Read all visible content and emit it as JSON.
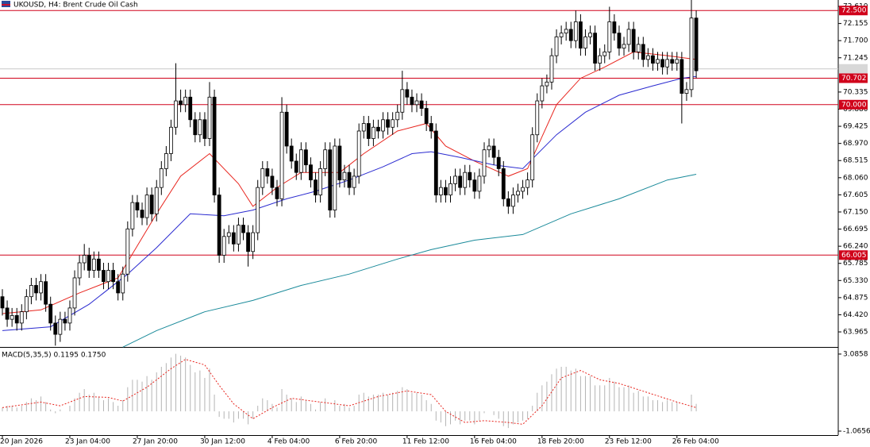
{
  "header": {
    "title": "UKOUSD, H4: Brent Crude Oil Cash"
  },
  "chart_data": [
    {
      "type": "candlestick",
      "open": [
        64.9,
        64.6,
        64.3,
        64.4,
        64.2,
        64.5,
        64.9,
        65.2,
        65.0,
        65.3,
        64.7,
        64.2,
        63.9,
        64.3,
        64.2,
        64.6,
        65.4,
        65.8,
        66.0,
        65.6,
        65.9,
        65.6,
        65.3,
        65.6,
        65.3,
        65.0,
        65.5,
        66.7,
        67.4,
        67.2,
        67.0,
        67.6,
        67.1,
        67.8,
        68.3,
        68.7,
        69.4,
        70.1,
        70.0,
        70.2,
        69.6,
        69.2,
        69.6,
        69.1,
        70.2,
        67.6,
        66.0,
        66.5,
        66.6,
        66.3,
        66.8,
        66.6,
        66.1,
        66.6,
        67.8,
        68.3,
        68.1,
        67.8,
        67.5,
        69.8,
        68.9,
        68.5,
        68.2,
        68.8,
        68.4,
        68.0,
        67.6,
        68.3,
        68.8,
        67.2,
        68.9,
        68.0,
        68.2,
        67.8,
        68.1,
        69.3,
        69.5,
        69.1,
        69.4,
        69.3,
        69.6,
        69.4,
        69.6,
        69.8,
        70.4,
        70.2,
        70.0,
        70.1,
        69.9,
        69.5,
        69.3,
        67.6,
        67.8,
        67.6,
        67.9,
        68.1,
        67.8,
        68.2,
        68.0,
        67.7,
        68.1,
        68.8,
        68.9,
        68.6,
        68.3,
        67.5,
        67.3,
        67.6,
        67.7,
        67.8,
        68.0,
        69.2,
        70.1,
        70.5,
        70.6,
        71.3,
        71.8,
        71.9,
        72.0,
        71.7,
        72.2,
        71.5,
        71.8,
        71.9,
        71.1,
        71.3,
        71.4,
        72.2,
        71.9,
        71.5,
        71.6,
        72.0,
        71.4,
        71.6,
        71.2,
        71.3,
        71.1,
        71.2,
        71.0,
        71.2,
        71.1,
        71.2,
        70.3,
        70.4,
        72.3
      ],
      "high": [
        65.1,
        64.8,
        64.6,
        64.6,
        64.7,
        65.1,
        65.4,
        65.4,
        65.5,
        65.5,
        64.9,
        64.4,
        64.5,
        64.5,
        64.8,
        65.6,
        66.0,
        66.3,
        66.2,
        66.1,
        66.1,
        65.8,
        65.8,
        65.8,
        65.5,
        65.7,
        66.9,
        67.6,
        67.6,
        67.4,
        67.8,
        67.8,
        68.0,
        68.5,
        68.9,
        69.6,
        71.1,
        70.4,
        70.4,
        70.4,
        69.8,
        69.8,
        69.8,
        70.6,
        70.4,
        67.8,
        66.7,
        66.8,
        66.8,
        67.0,
        67.0,
        66.8,
        66.8,
        68.0,
        68.5,
        68.5,
        68.3,
        68.0,
        70.2,
        70.0,
        69.1,
        68.7,
        69.0,
        69.0,
        68.6,
        68.2,
        68.5,
        69.0,
        69.0,
        69.1,
        69.1,
        68.4,
        68.4,
        68.3,
        69.5,
        69.7,
        69.7,
        69.6,
        69.6,
        69.8,
        69.8,
        69.8,
        70.0,
        70.9,
        70.6,
        70.4,
        70.3,
        70.3,
        70.1,
        69.7,
        69.5,
        68.0,
        68.0,
        68.1,
        68.3,
        68.3,
        68.4,
        68.4,
        68.2,
        68.3,
        69.0,
        69.1,
        69.1,
        68.8,
        68.5,
        67.7,
        67.8,
        67.9,
        68.0,
        68.2,
        69.4,
        70.3,
        70.7,
        70.8,
        71.5,
        72.0,
        72.1,
        72.2,
        72.2,
        72.5,
        72.4,
        72.0,
        72.1,
        72.1,
        71.5,
        71.6,
        72.6,
        72.4,
        72.1,
        71.8,
        72.2,
        72.2,
        71.8,
        71.8,
        71.5,
        71.5,
        71.4,
        71.4,
        71.4,
        71.4,
        71.4,
        71.4,
        70.6,
        72.8,
        72.5
      ],
      "low": [
        64.4,
        64.1,
        64.1,
        64.0,
        64.0,
        64.3,
        64.7,
        64.8,
        64.8,
        64.5,
        64.0,
        63.6,
        63.7,
        64.0,
        64.0,
        64.4,
        65.2,
        65.6,
        65.4,
        65.4,
        65.4,
        65.1,
        65.1,
        65.1,
        64.8,
        64.8,
        65.3,
        66.5,
        67.0,
        66.8,
        66.8,
        66.9,
        66.9,
        67.6,
        68.1,
        68.5,
        69.2,
        69.8,
        69.8,
        69.4,
        69.0,
        69.0,
        68.9,
        68.9,
        67.4,
        65.8,
        65.8,
        66.3,
        66.1,
        66.1,
        66.4,
        65.7,
        65.9,
        66.4,
        67.6,
        67.9,
        67.6,
        67.3,
        67.3,
        68.7,
        68.3,
        68.0,
        68.0,
        68.2,
        67.8,
        67.4,
        67.4,
        68.1,
        67.0,
        67.0,
        67.8,
        67.8,
        67.6,
        67.6,
        67.9,
        69.1,
        68.9,
        68.9,
        69.1,
        69.1,
        69.2,
        69.2,
        69.4,
        69.6,
        70.0,
        69.8,
        69.8,
        69.7,
        69.3,
        69.1,
        67.4,
        67.4,
        67.4,
        67.4,
        67.7,
        67.6,
        67.6,
        67.8,
        67.5,
        67.5,
        67.9,
        68.6,
        68.4,
        68.1,
        67.3,
        67.1,
        67.1,
        67.4,
        67.5,
        67.6,
        67.8,
        69.0,
        69.9,
        70.3,
        70.4,
        71.1,
        71.6,
        71.7,
        71.5,
        71.5,
        71.3,
        71.3,
        71.6,
        70.9,
        70.9,
        71.1,
        71.2,
        71.7,
        71.3,
        71.3,
        71.4,
        71.2,
        71.2,
        71.0,
        71.0,
        70.9,
        70.9,
        70.8,
        70.8,
        70.9,
        70.9,
        69.5,
        70.1,
        70.2,
        70.7
      ],
      "close": [
        64.6,
        64.3,
        64.4,
        64.2,
        64.5,
        64.9,
        65.2,
        65.0,
        65.3,
        64.7,
        64.2,
        63.9,
        64.3,
        64.2,
        64.6,
        65.4,
        65.8,
        66.0,
        65.6,
        65.9,
        65.6,
        65.3,
        65.6,
        65.3,
        65.0,
        65.5,
        66.7,
        67.4,
        67.2,
        67.0,
        67.6,
        67.1,
        67.8,
        68.3,
        68.7,
        69.4,
        70.1,
        70.0,
        70.2,
        69.6,
        69.2,
        69.6,
        69.1,
        70.2,
        67.6,
        66.0,
        66.5,
        66.6,
        66.3,
        66.8,
        66.6,
        66.1,
        66.6,
        67.8,
        68.3,
        68.1,
        67.8,
        67.5,
        69.8,
        68.9,
        68.5,
        68.2,
        68.8,
        68.4,
        68.0,
        67.6,
        68.3,
        68.8,
        67.2,
        68.9,
        68.0,
        68.2,
        67.8,
        68.1,
        69.3,
        69.5,
        69.1,
        69.4,
        69.3,
        69.6,
        69.4,
        69.6,
        69.8,
        70.4,
        70.2,
        70.0,
        70.1,
        69.9,
        69.5,
        69.3,
        67.6,
        67.8,
        67.6,
        67.9,
        68.1,
        67.8,
        68.2,
        68.0,
        67.7,
        68.1,
        68.8,
        68.9,
        68.6,
        68.3,
        67.5,
        67.3,
        67.6,
        67.7,
        67.8,
        68.0,
        69.2,
        70.1,
        70.5,
        70.6,
        71.3,
        71.8,
        71.9,
        72.0,
        71.7,
        72.2,
        71.5,
        71.8,
        71.9,
        71.1,
        71.3,
        71.4,
        72.2,
        71.9,
        71.5,
        71.6,
        72.0,
        71.4,
        71.6,
        71.2,
        71.3,
        71.1,
        71.2,
        71.0,
        71.2,
        71.1,
        71.2,
        70.3,
        70.4,
        72.3,
        70.9
      ],
      "up_color": "#ffffff",
      "down_color": "#000000",
      "lines": [
        {
          "color": "#e8251e",
          "x": [
            0,
            8,
            16,
            24,
            32,
            37,
            43,
            49,
            52,
            57,
            62,
            70,
            75,
            82,
            88,
            92,
            98,
            105,
            109,
            115,
            120,
            125,
            131,
            138,
            144
          ],
          "values": [
            64.45,
            64.55,
            65.0,
            65.4,
            67.1,
            68.1,
            68.7,
            67.9,
            67.3,
            67.8,
            68.2,
            68.2,
            68.7,
            69.3,
            69.5,
            68.9,
            68.5,
            68.1,
            68.3,
            70.0,
            70.7,
            71.0,
            71.4,
            71.3,
            71.2
          ]
        },
        {
          "color": "#2a2ad0",
          "x": [
            0,
            10,
            18,
            26,
            32,
            39,
            46,
            52,
            59,
            65,
            72,
            79,
            85,
            89,
            95,
            102,
            108,
            115,
            121,
            128,
            135,
            141,
            144
          ],
          "values": [
            64.0,
            64.1,
            64.7,
            65.5,
            66.2,
            67.1,
            67.05,
            67.2,
            67.5,
            67.7,
            68.0,
            68.35,
            68.7,
            68.75,
            68.6,
            68.4,
            68.3,
            69.2,
            69.8,
            70.25,
            70.5,
            70.7,
            70.75
          ]
        },
        {
          "color": "#1a8a9a",
          "x": [
            25,
            32,
            42,
            52,
            62,
            72,
            82,
            89,
            98,
            108,
            118,
            128,
            138,
            144
          ],
          "values": [
            63.56,
            64.0,
            64.5,
            64.8,
            65.2,
            65.5,
            65.9,
            66.15,
            66.4,
            66.55,
            67.1,
            67.5,
            68.0,
            68.15
          ]
        }
      ],
      "levels": [
        {
          "value": 72.5,
          "label": "72.500",
          "color": "#d0021b"
        },
        {
          "value": 70.702,
          "label": "70.702",
          "color": "#d0021b"
        },
        {
          "value": 70.0,
          "label": "70.000",
          "color": "#d0021b"
        },
        {
          "value": 66.005,
          "label": "66.005",
          "color": "#d0021b"
        }
      ],
      "bid": 70.95,
      "ylim": [
        63.565,
        72.779
      ],
      "yticks": [
        {
          "value": 72.61,
          "label": "72.610"
        },
        72.155,
        {
          "value": 71.7,
          "label": "71.700"
        },
        71.245,
        70.335,
        {
          "value": 69.88,
          "label": "69.880"
        },
        69.425,
        {
          "value": 68.97,
          "label": "68.970"
        },
        68.515,
        {
          "value": 68.06,
          "label": "68.060"
        },
        67.605,
        {
          "value": 67.15,
          "label": "67.150"
        },
        66.695,
        {
          "value": 66.24,
          "label": "66.240"
        },
        65.785,
        {
          "value": 65.33,
          "label": "65.330"
        },
        64.875,
        {
          "value": 64.42,
          "label": "64.420"
        },
        63.965
      ],
      "xticks": [
        {
          "value": 0,
          "label": "20 Jan 2026"
        },
        {
          "value": 14,
          "label": "23 Jan 04:00"
        },
        {
          "value": 28,
          "label": "27 Jan 20:00"
        },
        {
          "value": 42,
          "label": "30 Jan 12:00"
        },
        {
          "value": 56,
          "label": "4 Feb 04:00"
        },
        {
          "value": 70,
          "label": "6 Feb 20:00"
        },
        {
          "value": 84,
          "label": "11 Feb 12:00"
        },
        {
          "value": 98,
          "label": "16 Feb 04:00"
        },
        {
          "value": 112,
          "label": "18 Feb 20:00"
        },
        {
          "value": 126,
          "label": "23 Feb 12:00"
        },
        {
          "value": 140,
          "label": "26 Feb 04:00"
        }
      ]
    },
    {
      "type": "macd",
      "title": "MACD(5,35,5) 0.1195 0.1750",
      "histogram": [
        0.2,
        0.3,
        0.3,
        0.2,
        0.3,
        0.5,
        0.7,
        0.6,
        0.8,
        0.5,
        0.1,
        -0.1,
        0.1,
        0.0,
        0.3,
        0.7,
        1.0,
        1.2,
        0.9,
        1.0,
        0.8,
        0.6,
        0.7,
        0.5,
        0.3,
        0.6,
        1.3,
        1.7,
        1.7,
        1.6,
        1.9,
        1.7,
        2.1,
        2.4,
        2.6,
        2.9,
        3.1,
        3.0,
        2.9,
        2.5,
        2.1,
        2.2,
        1.8,
        2.3,
        0.9,
        -0.3,
        -0.4,
        -0.4,
        -0.6,
        -0.4,
        -0.4,
        -0.7,
        -0.4,
        0.3,
        0.7,
        0.6,
        0.4,
        0.2,
        1.2,
        0.9,
        0.7,
        0.5,
        0.8,
        0.6,
        0.4,
        0.1,
        0.5,
        0.7,
        0.0,
        0.6,
        0.3,
        0.4,
        0.2,
        0.3,
        0.9,
        1.0,
        0.8,
        0.9,
        0.9,
        1.0,
        0.9,
        1.0,
        1.1,
        1.3,
        1.2,
        1.0,
        1.0,
        0.9,
        0.6,
        0.4,
        -0.5,
        -0.6,
        -0.8,
        -0.7,
        -0.5,
        -0.7,
        -0.5,
        -0.5,
        -0.7,
        -0.5,
        -0.1,
        0.0,
        -0.2,
        -0.4,
        -0.8,
        -0.9,
        -0.7,
        -0.6,
        -0.5,
        -0.4,
        0.3,
        1.0,
        1.4,
        1.6,
        2.0,
        2.3,
        2.4,
        2.4,
        2.2,
        2.3,
        1.9,
        1.9,
        1.9,
        1.4,
        1.4,
        1.4,
        1.8,
        1.6,
        1.3,
        1.3,
        1.4,
        1.0,
        1.1,
        0.8,
        0.8,
        0.6,
        0.6,
        0.5,
        0.6,
        0.5,
        0.5,
        0.0,
        0.0,
        0.9,
        0.4
      ],
      "histogram_color": "#b4b4b4",
      "signal": {
        "color": "#e8251e",
        "x": [
          0,
          8,
          12,
          17,
          22,
          25,
          30,
          35,
          38,
          42,
          45,
          48,
          52,
          56,
          60,
          66,
          72,
          78,
          84,
          89,
          92,
          96,
          100,
          105,
          108,
          112,
          116,
          120,
          124,
          128,
          134,
          140,
          144
        ],
        "values": [
          0.2,
          0.5,
          0.3,
          0.8,
          0.75,
          0.55,
          1.3,
          2.3,
          2.8,
          2.5,
          1.4,
          0.4,
          -0.4,
          0.2,
          0.7,
          0.5,
          0.3,
          0.8,
          1.1,
          0.9,
          0.0,
          -0.6,
          -0.5,
          -0.6,
          -0.7,
          0.3,
          1.8,
          2.2,
          1.7,
          1.5,
          1.0,
          0.5,
          0.2
        ]
      },
      "ylim": [
        -1.28,
        3.34
      ],
      "yticks": [
        3.0858,
        -1.0656
      ]
    }
  ]
}
